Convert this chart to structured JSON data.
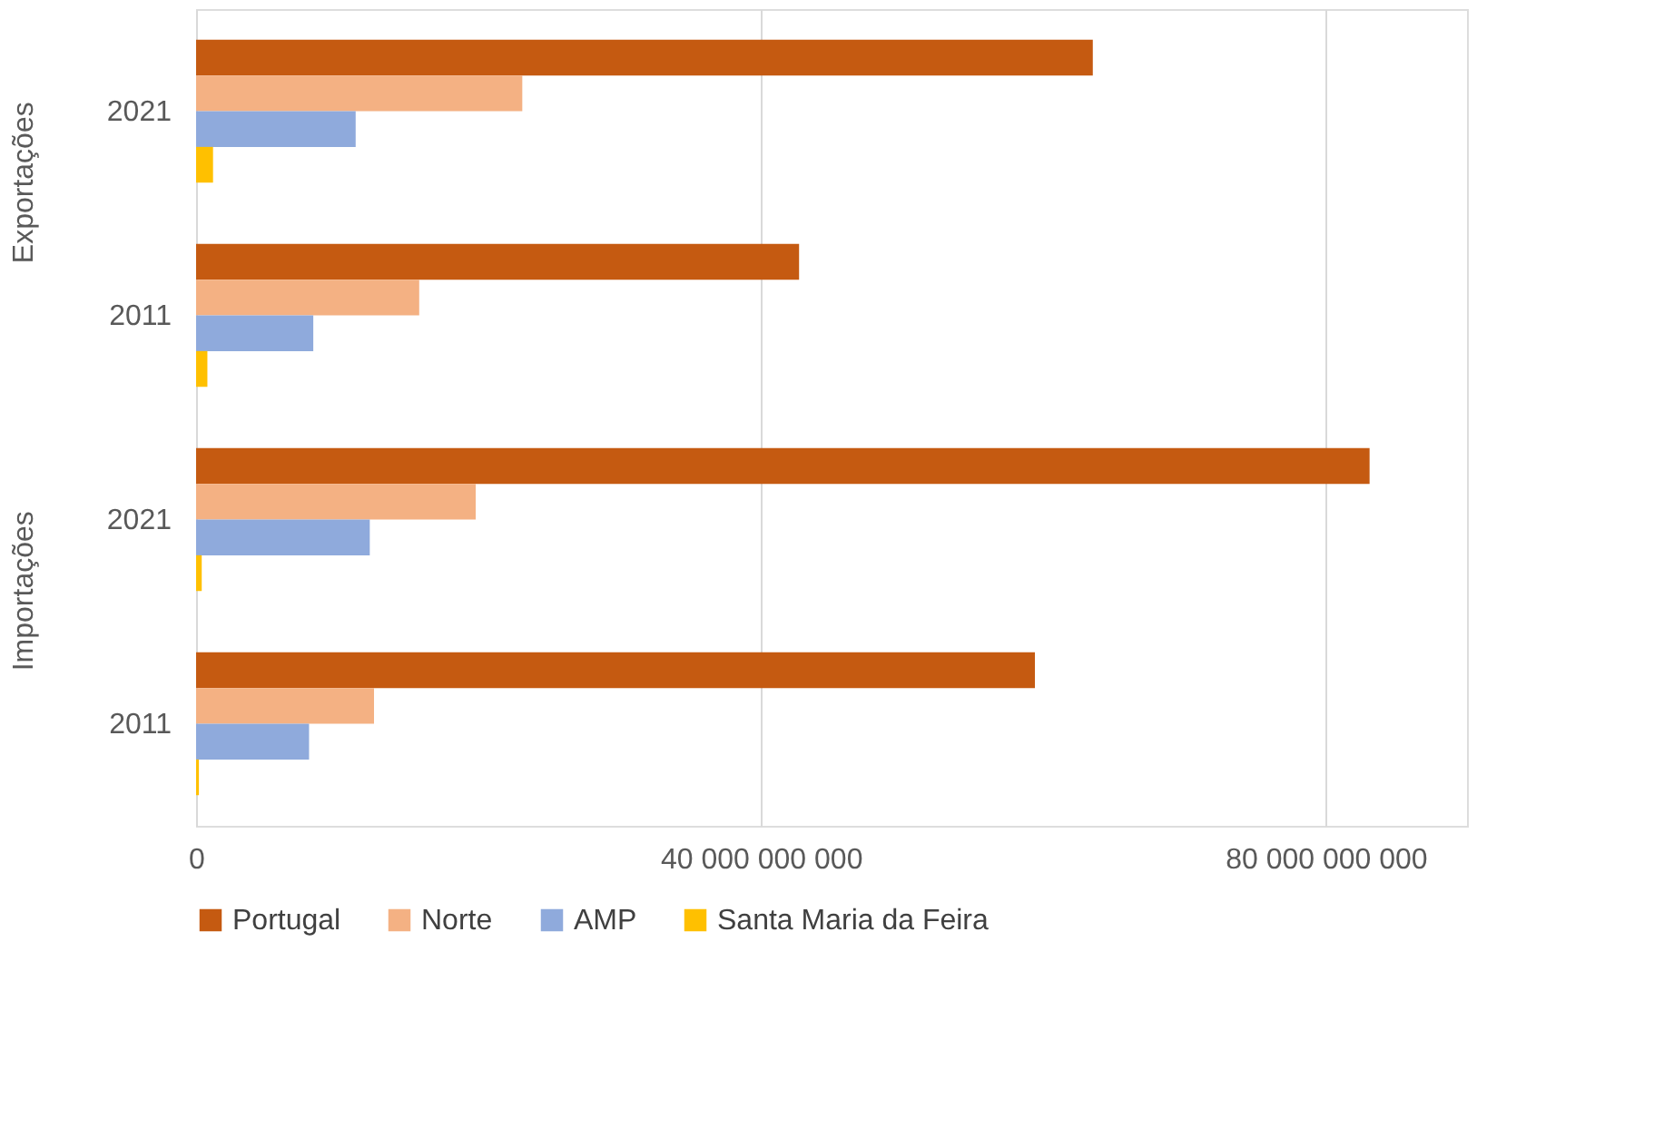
{
  "chart_data": {
    "type": "bar",
    "orientation": "horizontal",
    "categories": [
      "2021",
      "2011",
      "2021",
      "2011"
    ],
    "annotations": [
      "Exportações",
      "Importações"
    ],
    "series": [
      {
        "name": "Portugal",
        "color": "#c55a11",
        "values": [
          63500000000,
          42700000000,
          83100000000,
          59400000000
        ]
      },
      {
        "name": "Norte",
        "color": "#f4b183",
        "values": [
          23100000000,
          15800000000,
          19800000000,
          12600000000
        ]
      },
      {
        "name": "AMP",
        "color": "#8faadc",
        "values": [
          11300000000,
          8300000000,
          12300000000,
          8000000000
        ]
      },
      {
        "name": "Santa Maria da Feira",
        "color": "#ffc000",
        "values": [
          1200000000,
          800000000,
          400000000,
          200000000
        ]
      }
    ],
    "xlim": [
      0,
      90000000000
    ],
    "xticks": [
      0,
      40000000000,
      80000000000
    ],
    "grid": "x",
    "legend": "bottom"
  }
}
